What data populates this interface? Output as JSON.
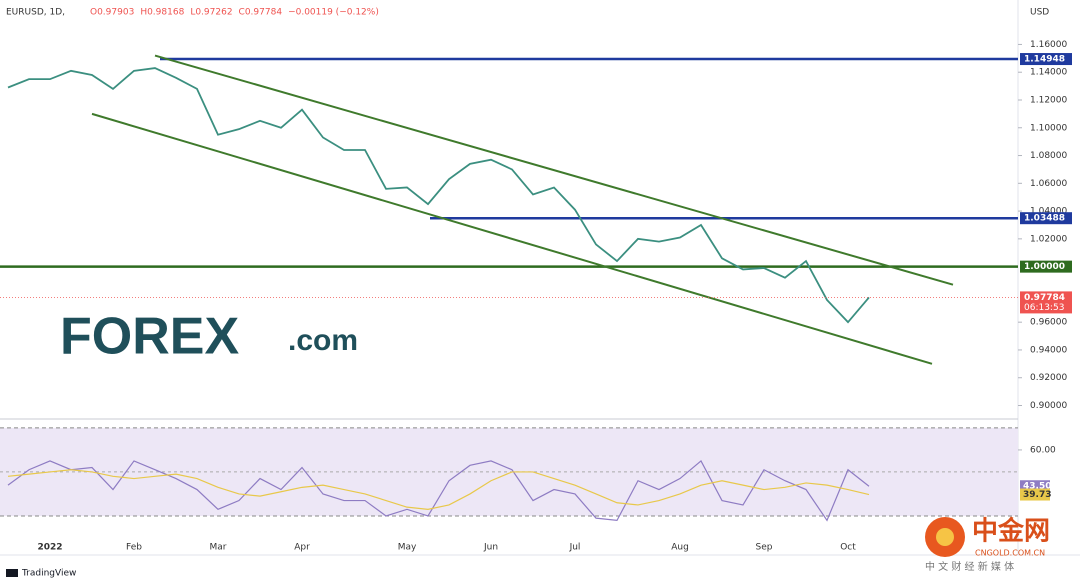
{
  "header": {
    "symbol": "EURUSD, 1D,",
    "ohlc": [
      "O0.97903",
      "H0.98168",
      "L0.97262",
      "C0.97784",
      "−0.00119 (−0.12%)"
    ],
    "currency": "USD"
  },
  "logo": {
    "text": "FOREX",
    "suffix": ".com"
  },
  "watermark": {
    "name": "中金网",
    "site": "CNGOLD.COM.CN",
    "tagline": "中 文 财 经 新 媒 体"
  },
  "footer": {
    "brand": "TradingView"
  },
  "chart_data": [
    {
      "type": "line",
      "categories": [
        null,
        null,
        "2022",
        null,
        null,
        null,
        "Feb",
        null,
        null,
        null,
        "Mar",
        null,
        null,
        null,
        "Apr",
        null,
        null,
        null,
        null,
        "May",
        null,
        null,
        null,
        "Jun",
        null,
        null,
        null,
        "Jul",
        null,
        null,
        null,
        null,
        "Aug",
        null,
        null,
        null,
        "Sep",
        null,
        null,
        null,
        "Oct",
        null,
        null,
        null,
        null,
        null,
        null,
        null
      ],
      "series": [
        {
          "color": "#3b8f80",
          "values": [
            1.129,
            1.135,
            1.135,
            1.141,
            1.138,
            1.128,
            1.141,
            1.143,
            1.136,
            1.128,
            1.095,
            1.099,
            1.105,
            1.1,
            1.113,
            1.093,
            1.084,
            1.084,
            1.056,
            1.057,
            1.045,
            1.063,
            1.074,
            1.077,
            1.07,
            1.052,
            1.057,
            1.041,
            1.016,
            1.004,
            1.02,
            1.018,
            1.021,
            1.03,
            1.006,
            0.998,
            0.999,
            0.992,
            1.004,
            0.976,
            0.96,
            0.97784,
            null,
            null,
            null,
            null,
            null,
            null
          ]
        }
      ],
      "trendlines": [
        {
          "color": "#3f7a2c",
          "values": [
            null,
            null,
            null,
            null,
            null,
            null,
            null,
            1.152,
            null,
            null,
            null,
            null,
            null,
            null,
            null,
            null,
            null,
            null,
            null,
            null,
            null,
            null,
            null,
            null,
            null,
            null,
            null,
            null,
            null,
            null,
            null,
            null,
            null,
            null,
            null,
            null,
            null,
            null,
            null,
            null,
            null,
            null,
            null,
            null,
            null,
            0.987,
            null,
            null
          ]
        },
        {
          "color": "#3f7a2c",
          "values": [
            null,
            null,
            null,
            null,
            1.11,
            null,
            null,
            null,
            null,
            null,
            null,
            null,
            null,
            null,
            null,
            null,
            null,
            null,
            null,
            null,
            null,
            null,
            null,
            null,
            null,
            null,
            null,
            null,
            null,
            null,
            null,
            null,
            null,
            null,
            null,
            null,
            null,
            null,
            null,
            null,
            null,
            null,
            null,
            null,
            0.93,
            null,
            null,
            null
          ]
        }
      ],
      "levels": [
        {
          "value": 1.14948,
          "label": "1.14948",
          "color": "#1f3a9e"
        },
        {
          "value": 1.03488,
          "label": "1.03488",
          "color": "#1f3a9e"
        },
        {
          "value": 1.0,
          "label": "1.00000",
          "color": "#2e6b1f"
        }
      ],
      "last_price": {
        "value": 0.97784,
        "label": "0.97784",
        "countdown": "06:13:53",
        "color": "#ef5350"
      },
      "ylim": [
        0.891,
        1.192
      ],
      "yticks": [
        {
          "value": 1.16,
          "label": "1.16000"
        },
        {
          "value": 1.14,
          "label": "1.14000"
        },
        {
          "value": 1.12,
          "label": "1.12000"
        },
        {
          "value": 1.1,
          "label": "1.10000"
        },
        {
          "value": 1.08,
          "label": "1.08000"
        },
        {
          "value": 1.06,
          "label": "1.06000"
        },
        {
          "value": 1.04,
          "label": "1.04000"
        },
        {
          "value": 1.02,
          "label": "1.02000"
        },
        {
          "value": 0.96,
          "label": "0.96000"
        },
        {
          "value": 0.94,
          "label": "0.94000"
        },
        {
          "value": 0.92,
          "label": "0.92000"
        },
        {
          "value": 0.9,
          "label": "0.90000"
        }
      ]
    },
    {
      "type": "line",
      "series": [
        {
          "color": "#8e7cc3",
          "values": [
            44,
            51,
            55,
            51,
            52,
            42,
            55,
            51,
            47,
            42,
            33,
            37,
            47,
            42,
            52,
            40,
            37,
            37,
            30,
            33,
            30,
            46,
            53,
            55,
            51,
            37,
            42,
            40,
            29,
            28,
            46,
            42,
            47,
            55,
            37,
            35,
            51,
            46,
            42,
            28,
            51,
            43.5,
            null,
            null,
            null,
            null,
            null,
            null
          ],
          "value_labels": [
            null,
            null,
            null,
            null,
            null,
            null,
            null,
            null,
            null,
            null,
            null,
            null,
            null,
            null,
            null,
            null,
            null,
            null,
            null,
            null,
            null,
            null,
            null,
            null,
            null,
            null,
            null,
            null,
            null,
            null,
            null,
            null,
            null,
            null,
            null,
            null,
            null,
            null,
            null,
            null,
            null,
            "43.50",
            null,
            null,
            null,
            null,
            null,
            null
          ]
        },
        {
          "color": "#e8c84a",
          "values": [
            48,
            49,
            50,
            51,
            50,
            48,
            47,
            48,
            49,
            47,
            43,
            40,
            39,
            41,
            43,
            44,
            42,
            40,
            37,
            34,
            33,
            35,
            40,
            46,
            50,
            50,
            47,
            44,
            40,
            36,
            35,
            37,
            40,
            44,
            46,
            44,
            42,
            43,
            45,
            44,
            42,
            39.73,
            null,
            null,
            null,
            null,
            null,
            null
          ]
        }
      ],
      "bands": [
        30,
        70
      ],
      "midline": 50,
      "band_color": "#ede7f6",
      "ylim": [
        16.8,
        73.6
      ],
      "yticks": [
        {
          "value": 60,
          "label": "60.00"
        }
      ]
    }
  ]
}
